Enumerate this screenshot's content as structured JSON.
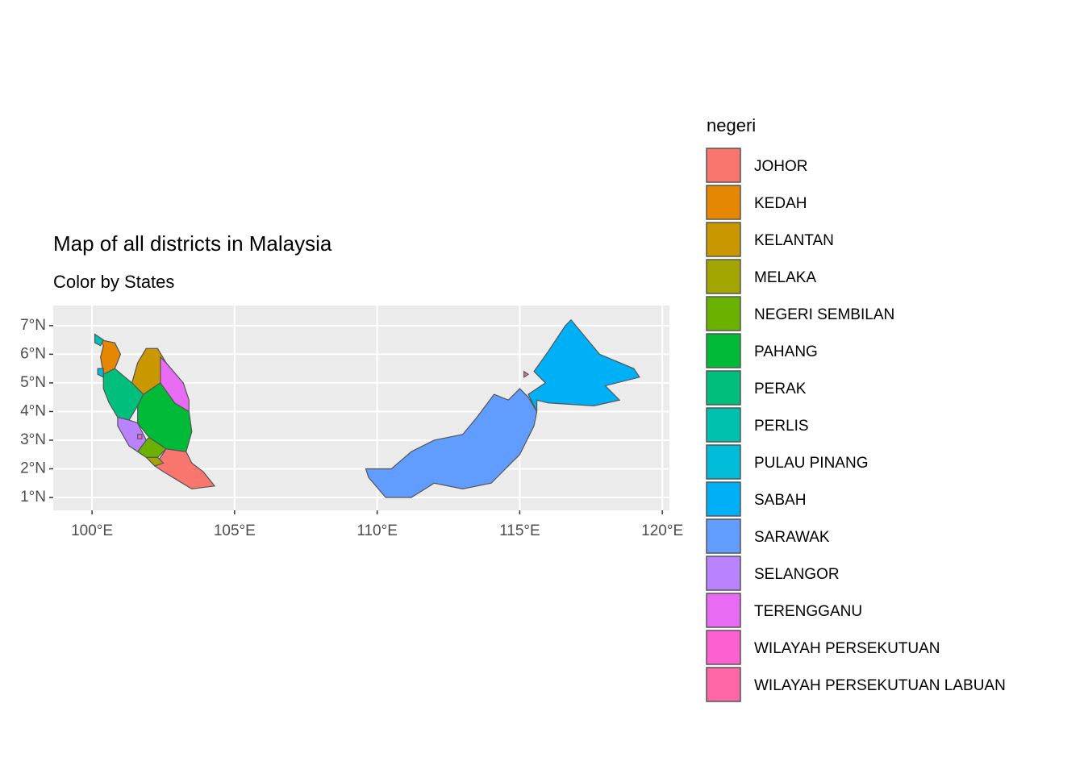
{
  "chart_data": {
    "type": "map",
    "title": "Map of all districts in Malaysia",
    "subtitle": "Color by States",
    "xlim": [
      98.64,
      120.25
    ],
    "ylim": [
      0.55,
      7.7
    ],
    "xticks": [
      {
        "value": 100,
        "label": "100°E"
      },
      {
        "value": 105,
        "label": "105°E"
      },
      {
        "value": 110,
        "label": "110°E"
      },
      {
        "value": 115,
        "label": "115°E"
      },
      {
        "value": 120,
        "label": "120°E"
      }
    ],
    "yticks": [
      {
        "value": 1,
        "label": "1°N"
      },
      {
        "value": 2,
        "label": "2°N"
      },
      {
        "value": 3,
        "label": "3°N"
      },
      {
        "value": 4,
        "label": "4°N"
      },
      {
        "value": 5,
        "label": "5°N"
      },
      {
        "value": 6,
        "label": "6°N"
      },
      {
        "value": 7,
        "label": "7°N"
      }
    ],
    "grid": true,
    "legend": {
      "title": "negeri",
      "position": "right"
    },
    "series": [
      {
        "name": "JOHOR",
        "color": "#F8766D"
      },
      {
        "name": "KEDAH",
        "color": "#E58700"
      },
      {
        "name": "KELANTAN",
        "color": "#C99800"
      },
      {
        "name": "MELAKA",
        "color": "#A3A500"
      },
      {
        "name": "NEGERI SEMBILAN",
        "color": "#6BB100"
      },
      {
        "name": "PAHANG",
        "color": "#00BA38"
      },
      {
        "name": "PERAK",
        "color": "#00BF7D"
      },
      {
        "name": "PERLIS",
        "color": "#00C0AF"
      },
      {
        "name": "PULAU PINANG",
        "color": "#00BCD8"
      },
      {
        "name": "SABAH",
        "color": "#00B0F6"
      },
      {
        "name": "SARAWAK",
        "color": "#619CFF"
      },
      {
        "name": "SELANGOR",
        "color": "#B983FF"
      },
      {
        "name": "TERENGGANU",
        "color": "#E76BF3"
      },
      {
        "name": "WILAYAH PERSEKUTUAN",
        "color": "#FD61D1"
      },
      {
        "name": "WILAYAH PERSEKUTUAN LABUAN",
        "color": "#FF67A4"
      }
    ]
  }
}
